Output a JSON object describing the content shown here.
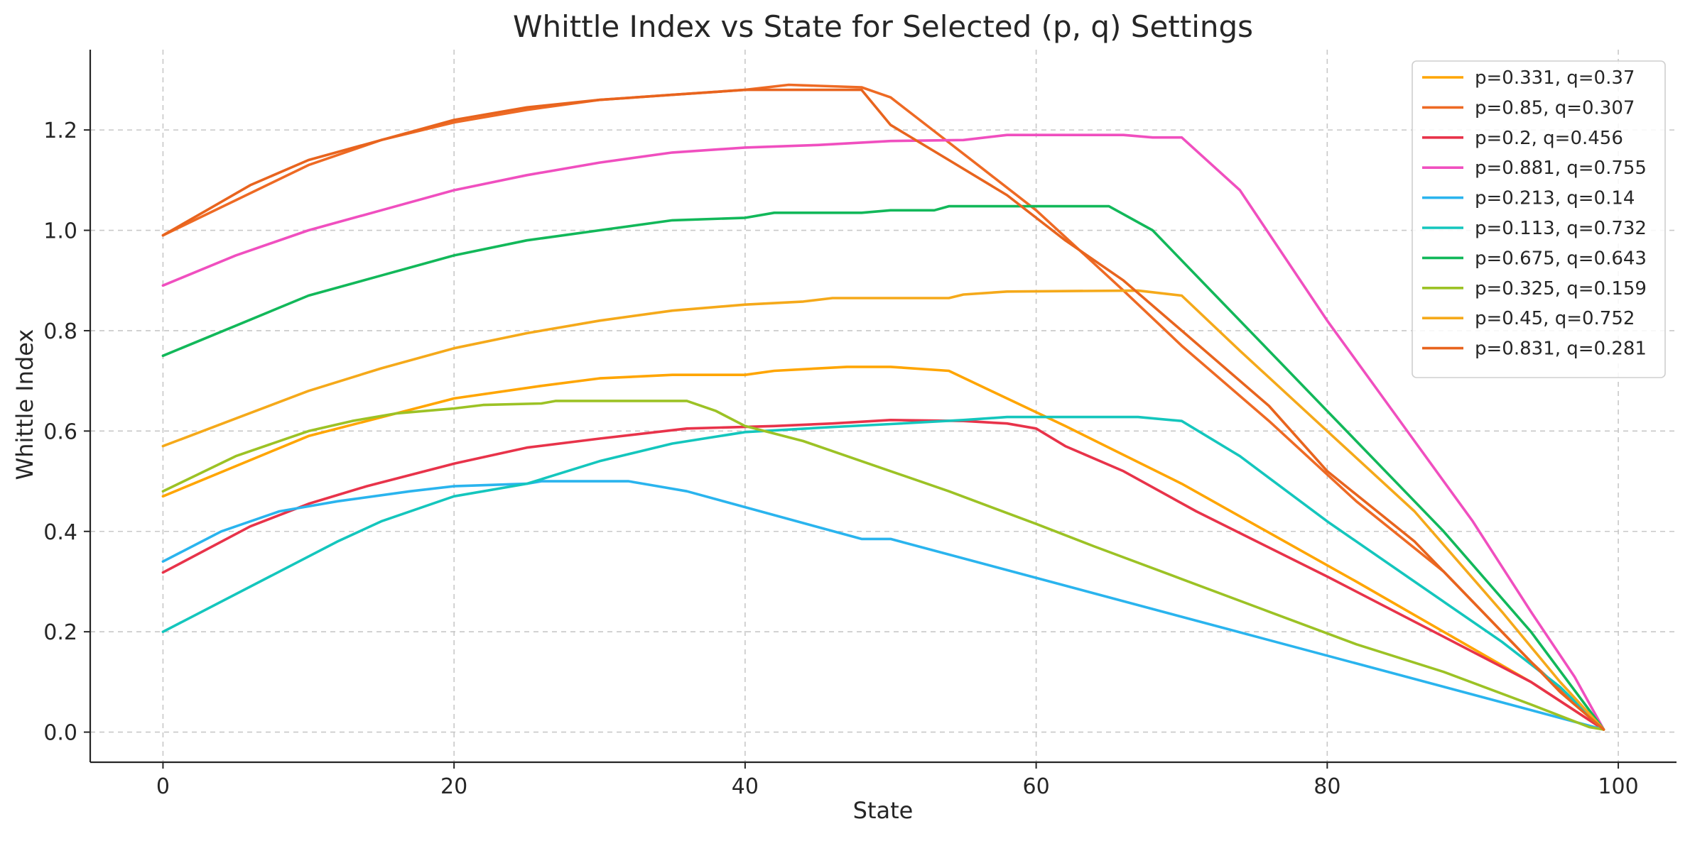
{
  "chart_data": {
    "type": "line",
    "title": "Whittle Index vs State for Selected (p, q) Settings",
    "xlabel": "State",
    "ylabel": "Whittle Index",
    "xlim": [
      -5,
      104
    ],
    "ylim": [
      -0.06,
      1.36
    ],
    "xticks": [
      0,
      20,
      40,
      60,
      80,
      100
    ],
    "yticks": [
      0.0,
      0.2,
      0.4,
      0.6,
      0.8,
      1.0,
      1.2
    ],
    "xtick_labels": [
      "0",
      "20",
      "40",
      "60",
      "80",
      "100"
    ],
    "ytick_labels": [
      "0.0",
      "0.2",
      "0.4",
      "0.6",
      "0.8",
      "1.0",
      "1.2"
    ],
    "grid": true,
    "legend_position": "top-right",
    "series": [
      {
        "name": "p=0.331, q=0.37",
        "color": "#FFA500",
        "points": [
          [
            0,
            0.47
          ],
          [
            10,
            0.59
          ],
          [
            20,
            0.665
          ],
          [
            26,
            0.69
          ],
          [
            30,
            0.705
          ],
          [
            35,
            0.712
          ],
          [
            40,
            0.712
          ],
          [
            42,
            0.72
          ],
          [
            47,
            0.728
          ],
          [
            50,
            0.728
          ],
          [
            54,
            0.72
          ],
          [
            62,
            0.61
          ],
          [
            70,
            0.495
          ],
          [
            82,
            0.3
          ],
          [
            88,
            0.2
          ],
          [
            94,
            0.1
          ],
          [
            99,
            0.005
          ]
        ]
      },
      {
        "name": "p=0.85, q=0.307",
        "color": "#EE6A24",
        "points": [
          [
            0,
            0.99
          ],
          [
            5,
            1.06
          ],
          [
            10,
            1.13
          ],
          [
            15,
            1.18
          ],
          [
            20,
            1.215
          ],
          [
            25,
            1.24
          ],
          [
            30,
            1.26
          ],
          [
            35,
            1.27
          ],
          [
            40,
            1.28
          ],
          [
            43,
            1.29
          ],
          [
            48,
            1.285
          ],
          [
            50,
            1.265
          ],
          [
            52,
            1.22
          ],
          [
            56,
            1.13
          ],
          [
            60,
            1.04
          ],
          [
            66,
            0.88
          ],
          [
            70,
            0.77
          ],
          [
            76,
            0.62
          ],
          [
            82,
            0.46
          ],
          [
            88,
            0.32
          ],
          [
            94,
            0.14
          ],
          [
            99,
            0.005
          ]
        ]
      },
      {
        "name": "p=0.2, q=0.456",
        "color": "#E8334A",
        "points": [
          [
            0,
            0.318
          ],
          [
            6,
            0.41
          ],
          [
            10,
            0.455
          ],
          [
            14,
            0.49
          ],
          [
            20,
            0.535
          ],
          [
            25,
            0.567
          ],
          [
            30,
            0.585
          ],
          [
            36,
            0.605
          ],
          [
            42,
            0.61
          ],
          [
            46,
            0.615
          ],
          [
            50,
            0.622
          ],
          [
            55,
            0.62
          ],
          [
            58,
            0.615
          ],
          [
            60,
            0.605
          ],
          [
            62,
            0.57
          ],
          [
            66,
            0.52
          ],
          [
            71,
            0.44
          ],
          [
            80,
            0.31
          ],
          [
            88,
            0.19
          ],
          [
            94,
            0.1
          ],
          [
            99,
            0.005
          ]
        ]
      },
      {
        "name": "p=0.881, q=0.755",
        "color": "#F04FBF",
        "points": [
          [
            0,
            0.89
          ],
          [
            5,
            0.95
          ],
          [
            10,
            1.0
          ],
          [
            15,
            1.04
          ],
          [
            20,
            1.08
          ],
          [
            25,
            1.11
          ],
          [
            30,
            1.135
          ],
          [
            35,
            1.155
          ],
          [
            40,
            1.165
          ],
          [
            45,
            1.17
          ],
          [
            50,
            1.178
          ],
          [
            55,
            1.18
          ],
          [
            58,
            1.19
          ],
          [
            66,
            1.19
          ],
          [
            68,
            1.185
          ],
          [
            70,
            1.185
          ],
          [
            74,
            1.08
          ],
          [
            80,
            0.82
          ],
          [
            86,
            0.58
          ],
          [
            90,
            0.42
          ],
          [
            94,
            0.24
          ],
          [
            97,
            0.11
          ],
          [
            99,
            0.005
          ]
        ]
      },
      {
        "name": "p=0.213, q=0.14",
        "color": "#2AB4EE",
        "points": [
          [
            0,
            0.34
          ],
          [
            4,
            0.4
          ],
          [
            8,
            0.44
          ],
          [
            12,
            0.46
          ],
          [
            17,
            0.48
          ],
          [
            20,
            0.49
          ],
          [
            25,
            0.495
          ],
          [
            26,
            0.5
          ],
          [
            32,
            0.5
          ],
          [
            34,
            0.49
          ],
          [
            36,
            0.48
          ],
          [
            48,
            0.385
          ],
          [
            50,
            0.385
          ],
          [
            99,
            0.005
          ]
        ]
      },
      {
        "name": "p=0.113, q=0.732",
        "color": "#14C6BD",
        "points": [
          [
            0,
            0.2
          ],
          [
            12,
            0.38
          ],
          [
            15,
            0.42
          ],
          [
            20,
            0.47
          ],
          [
            25,
            0.495
          ],
          [
            30,
            0.54
          ],
          [
            35,
            0.575
          ],
          [
            40,
            0.598
          ],
          [
            46,
            0.608
          ],
          [
            50,
            0.614
          ],
          [
            55,
            0.622
          ],
          [
            58,
            0.628
          ],
          [
            67,
            0.628
          ],
          [
            70,
            0.62
          ],
          [
            74,
            0.55
          ],
          [
            80,
            0.42
          ],
          [
            86,
            0.3
          ],
          [
            92,
            0.18
          ],
          [
            96,
            0.09
          ],
          [
            99,
            0.005
          ]
        ]
      },
      {
        "name": "p=0.675, q=0.643",
        "color": "#12B85A",
        "points": [
          [
            0,
            0.75
          ],
          [
            5,
            0.81
          ],
          [
            10,
            0.87
          ],
          [
            15,
            0.91
          ],
          [
            20,
            0.95
          ],
          [
            25,
            0.98
          ],
          [
            30,
            1.0
          ],
          [
            35,
            1.02
          ],
          [
            40,
            1.025
          ],
          [
            42,
            1.035
          ],
          [
            48,
            1.035
          ],
          [
            50,
            1.04
          ],
          [
            53,
            1.04
          ],
          [
            54,
            1.048
          ],
          [
            65,
            1.048
          ],
          [
            68,
            1.0
          ],
          [
            72,
            0.88
          ],
          [
            76,
            0.76
          ],
          [
            80,
            0.64
          ],
          [
            88,
            0.4
          ],
          [
            94,
            0.2
          ],
          [
            99,
            0.005
          ]
        ]
      },
      {
        "name": "p=0.325, q=0.159",
        "color": "#9CC225",
        "points": [
          [
            0,
            0.48
          ],
          [
            5,
            0.55
          ],
          [
            10,
            0.6
          ],
          [
            13,
            0.62
          ],
          [
            16,
            0.635
          ],
          [
            20,
            0.645
          ],
          [
            22,
            0.652
          ],
          [
            26,
            0.655
          ],
          [
            27,
            0.66
          ],
          [
            36,
            0.66
          ],
          [
            38,
            0.64
          ],
          [
            40,
            0.61
          ],
          [
            44,
            0.58
          ],
          [
            50,
            0.52
          ],
          [
            54,
            0.48
          ],
          [
            60,
            0.415
          ],
          [
            64,
            0.37
          ],
          [
            70,
            0.305
          ],
          [
            76,
            0.24
          ],
          [
            82,
            0.175
          ],
          [
            88,
            0.12
          ],
          [
            94,
            0.055
          ],
          [
            98,
            0.01
          ],
          [
            99,
            0.005
          ]
        ]
      },
      {
        "name": "p=0.45, q=0.752",
        "color": "#F5A91A",
        "points": [
          [
            0,
            0.57
          ],
          [
            5,
            0.625
          ],
          [
            10,
            0.68
          ],
          [
            15,
            0.725
          ],
          [
            20,
            0.765
          ],
          [
            25,
            0.795
          ],
          [
            30,
            0.82
          ],
          [
            35,
            0.84
          ],
          [
            40,
            0.852
          ],
          [
            44,
            0.858
          ],
          [
            46,
            0.865
          ],
          [
            54,
            0.865
          ],
          [
            55,
            0.872
          ],
          [
            58,
            0.878
          ],
          [
            67,
            0.88
          ],
          [
            70,
            0.87
          ],
          [
            74,
            0.76
          ],
          [
            80,
            0.6
          ],
          [
            86,
            0.44
          ],
          [
            92,
            0.24
          ],
          [
            96,
            0.1
          ],
          [
            99,
            0.005
          ]
        ]
      },
      {
        "name": "p=0.831, q=0.281",
        "color": "#E8641E",
        "points": [
          [
            0,
            0.99
          ],
          [
            3,
            1.04
          ],
          [
            6,
            1.09
          ],
          [
            10,
            1.14
          ],
          [
            15,
            1.18
          ],
          [
            20,
            1.22
          ],
          [
            25,
            1.245
          ],
          [
            30,
            1.26
          ],
          [
            35,
            1.27
          ],
          [
            40,
            1.28
          ],
          [
            48,
            1.28
          ],
          [
            50,
            1.21
          ],
          [
            54,
            1.14
          ],
          [
            58,
            1.07
          ],
          [
            62,
            0.98
          ],
          [
            66,
            0.9
          ],
          [
            70,
            0.8
          ],
          [
            76,
            0.65
          ],
          [
            80,
            0.52
          ],
          [
            86,
            0.38
          ],
          [
            92,
            0.2
          ],
          [
            96,
            0.08
          ],
          [
            99,
            0.005
          ]
        ]
      }
    ]
  }
}
